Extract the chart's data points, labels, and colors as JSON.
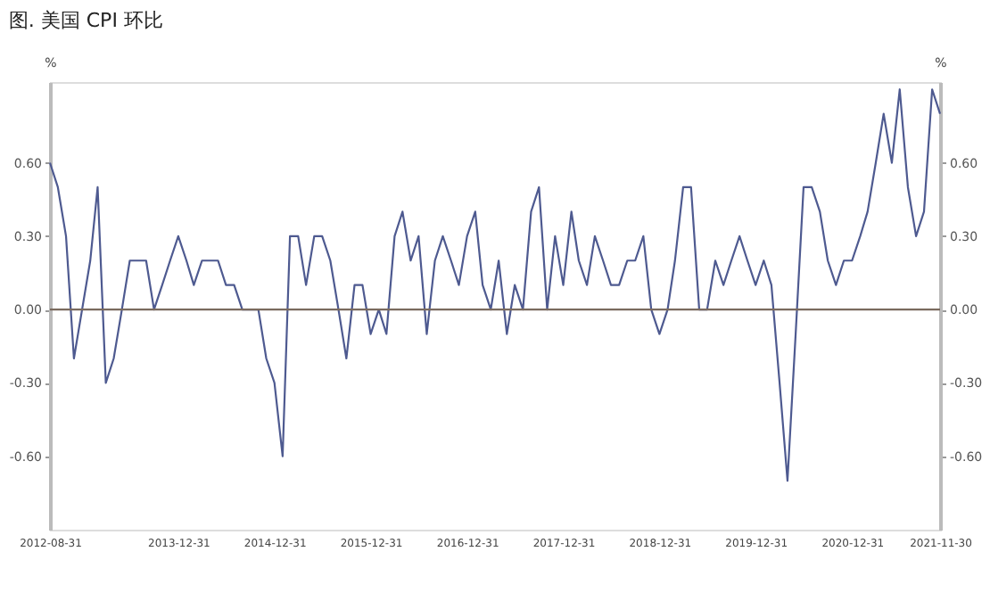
{
  "chart_data": {
    "type": "line",
    "title": "图. 美国 CPI 环比",
    "ylabel": "%",
    "y2label": "%",
    "x": [
      "2012-08-31",
      "2012-09-30",
      "2012-10-31",
      "2012-11-30",
      "2012-12-31",
      "2013-01-31",
      "2013-02-28",
      "2013-03-31",
      "2013-04-30",
      "2013-05-31",
      "2013-06-30",
      "2013-07-31",
      "2013-08-31",
      "2013-09-30",
      "2013-10-31",
      "2013-11-30",
      "2013-12-31",
      "2014-01-31",
      "2014-02-28",
      "2014-03-31",
      "2014-04-30",
      "2014-05-31",
      "2014-06-30",
      "2014-07-31",
      "2014-08-31",
      "2014-09-30",
      "2014-10-31",
      "2014-11-30",
      "2014-12-31",
      "2015-01-31",
      "2015-02-28",
      "2015-03-31",
      "2015-04-30",
      "2015-05-31",
      "2015-06-30",
      "2015-07-31",
      "2015-08-31",
      "2015-09-30",
      "2015-10-31",
      "2015-11-30",
      "2015-12-31",
      "2016-01-31",
      "2016-02-29",
      "2016-03-31",
      "2016-04-30",
      "2016-05-31",
      "2016-06-30",
      "2016-07-31",
      "2016-08-31",
      "2016-09-30",
      "2016-10-31",
      "2016-11-30",
      "2016-12-31",
      "2017-01-31",
      "2017-02-28",
      "2017-03-31",
      "2017-04-30",
      "2017-05-31",
      "2017-06-30",
      "2017-07-31",
      "2017-08-31",
      "2017-09-30",
      "2017-10-31",
      "2017-11-30",
      "2017-12-31",
      "2018-01-31",
      "2018-02-28",
      "2018-03-31",
      "2018-04-30",
      "2018-05-31",
      "2018-06-30",
      "2018-07-31",
      "2018-08-31",
      "2018-09-30",
      "2018-10-31",
      "2018-11-30",
      "2018-12-31",
      "2019-01-31",
      "2019-02-28",
      "2019-03-31",
      "2019-04-30",
      "2019-05-31",
      "2019-06-30",
      "2019-07-31",
      "2019-08-31",
      "2019-09-30",
      "2019-10-31",
      "2019-11-30",
      "2019-12-31",
      "2020-01-31",
      "2020-02-29",
      "2020-03-31",
      "2020-04-30",
      "2020-05-31",
      "2020-06-30",
      "2020-07-31",
      "2020-08-31",
      "2020-09-30",
      "2020-10-31",
      "2020-11-30",
      "2020-12-31",
      "2021-01-31",
      "2021-02-28",
      "2021-03-31",
      "2021-04-30",
      "2021-05-31",
      "2021-06-30",
      "2021-07-31",
      "2021-08-31",
      "2021-09-30",
      "2021-10-31",
      "2021-11-30"
    ],
    "series": [
      {
        "color": "#4e5a90",
        "values": [
          0.6,
          0.5,
          0.3,
          -0.2,
          0.0,
          0.2,
          0.5,
          -0.3,
          -0.2,
          0.0,
          0.2,
          0.2,
          0.2,
          0.0,
          0.1,
          0.2,
          0.3,
          0.2,
          0.1,
          0.2,
          0.2,
          0.2,
          0.1,
          0.1,
          0.0,
          0.0,
          0.0,
          -0.2,
          -0.3,
          -0.6,
          0.3,
          0.3,
          0.1,
          0.3,
          0.3,
          0.2,
          0.0,
          -0.2,
          0.1,
          0.1,
          -0.1,
          0.0,
          -0.1,
          0.3,
          0.4,
          0.2,
          0.3,
          -0.1,
          0.2,
          0.3,
          0.2,
          0.1,
          0.3,
          0.4,
          0.1,
          0.0,
          0.2,
          -0.1,
          0.1,
          0.0,
          0.4,
          0.5,
          0.0,
          0.3,
          0.1,
          0.4,
          0.2,
          0.1,
          0.3,
          0.2,
          0.1,
          0.1,
          0.2,
          0.2,
          0.3,
          0.0,
          -0.1,
          0.0,
          0.2,
          0.5,
          0.5,
          0.0,
          0.0,
          0.2,
          0.1,
          0.2,
          0.3,
          0.2,
          0.1,
          0.2,
          0.1,
          -0.3,
          -0.7,
          -0.1,
          0.5,
          0.5,
          0.4,
          0.2,
          0.1,
          0.2,
          0.2,
          0.3,
          0.4,
          0.6,
          0.8,
          0.6,
          0.9,
          0.5,
          0.3,
          0.4,
          0.9,
          0.8
        ]
      }
    ],
    "xlim": [
      "2012-08-31",
      "2021-11-30"
    ],
    "xticks": [
      "2012-08-31",
      "2013-12-31",
      "2014-12-31",
      "2015-12-31",
      "2016-12-31",
      "2017-12-31",
      "2018-12-31",
      "2019-12-31",
      "2020-12-31",
      "2021-11-30"
    ],
    "ylim": [
      -0.9,
      0.93
    ],
    "yticks": [
      {
        "value": -0.6,
        "label": "-0.60"
      },
      {
        "value": -0.3,
        "label": "-0.30"
      },
      {
        "value": 0,
        "label": "0.00"
      },
      {
        "value": 0.3,
        "label": "0.30"
      },
      {
        "value": 0.6,
        "label": "0.60"
      }
    ],
    "y2lim": [
      -0.9,
      0.93
    ],
    "y2ticks": [
      {
        "value": -0.6,
        "label": "-0.60"
      },
      {
        "value": -0.3,
        "label": "-0.30"
      },
      {
        "value": 0,
        "label": "0.00"
      },
      {
        "value": 0.3,
        "label": "0.30"
      },
      {
        "value": 0.6,
        "label": "0.60"
      }
    ],
    "ref_lines": [
      {
        "axis": "y",
        "value": 0,
        "color": "#7a6a5e"
      }
    ],
    "grid": false,
    "legend": false,
    "line_style": "solid",
    "marker": "none"
  }
}
